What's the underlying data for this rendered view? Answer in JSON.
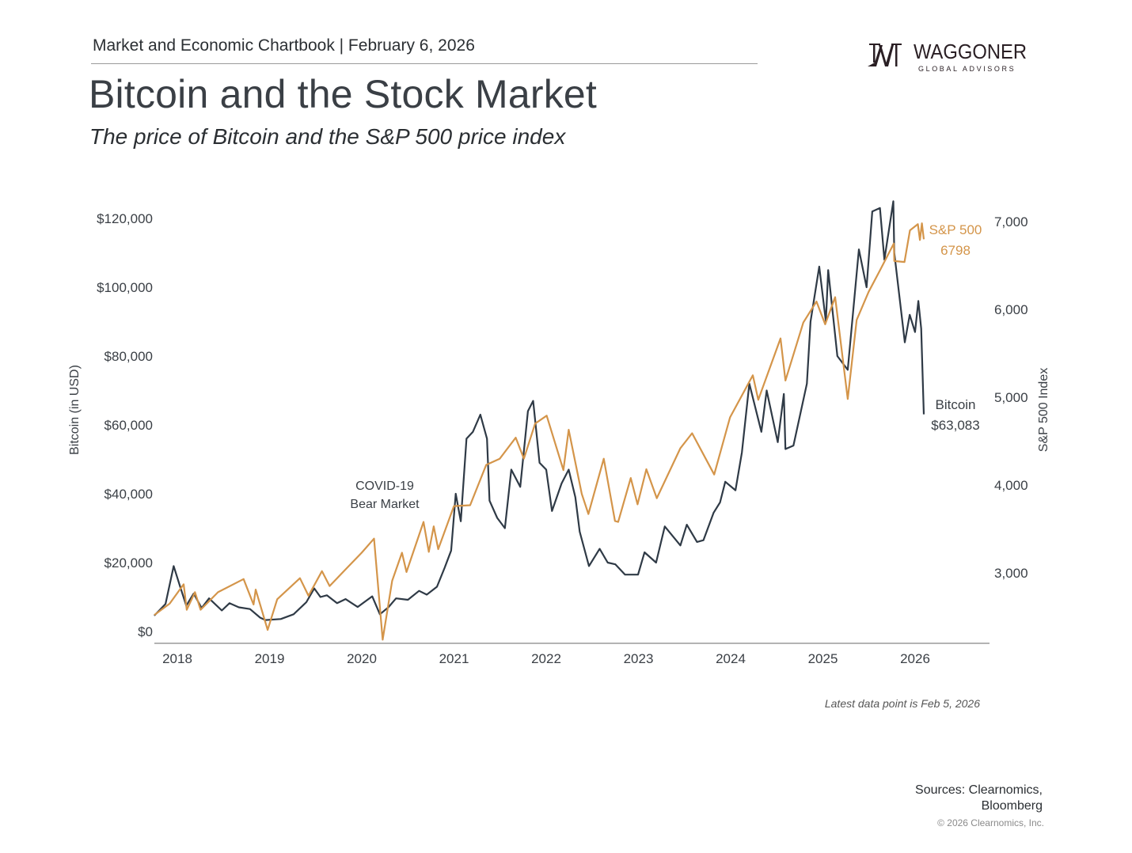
{
  "header": {
    "chartbook": "Market and Economic Chartbook | February 6, 2026",
    "title": "Bitcoin and the Stock Market",
    "subtitle": "The price of Bitcoin and the S&P 500 price index"
  },
  "logo": {
    "name": "WAGGONER",
    "tagline": "GLOBAL ADVISORS"
  },
  "footer": {
    "latest": "Latest data point is Feb 5, 2026",
    "sources_line1": "Sources: Clearnomics,",
    "sources_line2": "Bloomberg",
    "copyright": "© 2026 Clearnomics, Inc."
  },
  "chart_data": {
    "type": "line",
    "title": "Bitcoin and the Stock Market",
    "subtitle": "The price of Bitcoin and the S&P 500 price index",
    "ylabel_left": "Bitcoin (in USD)",
    "ylabel_right": "S&P 500 Index",
    "x_ticks": [
      "2018",
      "2019",
      "2020",
      "2021",
      "2022",
      "2023",
      "2024",
      "2025",
      "2026"
    ],
    "y_left_ticks": [
      "$0",
      "$20,000",
      "$40,000",
      "$60,000",
      "$80,000",
      "$100,000",
      "$120,000"
    ],
    "y_left_tick_values": [
      0,
      20000,
      40000,
      60000,
      80000,
      100000,
      120000
    ],
    "y_right_ticks": [
      "3,000",
      "4,000",
      "5,000",
      "6,000",
      "7,000"
    ],
    "y_right_tick_values": [
      3000,
      4000,
      5000,
      6000,
      7000
    ],
    "ylim_left": [
      -3500,
      125000
    ],
    "ylim_right": [
      2200,
      7200
    ],
    "xlim": [
      "2017-10-01",
      "2026-10-15"
    ],
    "grid": false,
    "legend": "none (direct labels at line ends)",
    "colors": {
      "bitcoin": "#2f3a46",
      "sp500": "#d4954a",
      "axis": "#9a9a9a"
    },
    "annotations": {
      "covid_line1": "COVID-19",
      "covid_line2": "Bear Market",
      "sp_label": "S&P 500",
      "sp_value": "6798",
      "btc_label": "Bitcoin",
      "btc_value": "$63,083"
    },
    "series": [
      {
        "name": "Bitcoin",
        "axis": "left",
        "points": [
          [
            "2017-10-01",
            4600
          ],
          [
            "2017-11-15",
            8000
          ],
          [
            "2017-12-17",
            19000
          ],
          [
            "2018-01-10",
            13500
          ],
          [
            "2018-02-06",
            7500
          ],
          [
            "2018-03-05",
            11000
          ],
          [
            "2018-04-06",
            6800
          ],
          [
            "2018-05-05",
            9600
          ],
          [
            "2018-06-25",
            6100
          ],
          [
            "2018-07-25",
            8200
          ],
          [
            "2018-09-01",
            7000
          ],
          [
            "2018-10-15",
            6500
          ],
          [
            "2018-11-25",
            4000
          ],
          [
            "2018-12-15",
            3300
          ],
          [
            "2019-02-15",
            3600
          ],
          [
            "2019-04-05",
            5000
          ],
          [
            "2019-05-25",
            8500
          ],
          [
            "2019-06-26",
            12500
          ],
          [
            "2019-07-20",
            10000
          ],
          [
            "2019-08-15",
            10500
          ],
          [
            "2019-09-25",
            8200
          ],
          [
            "2019-10-28",
            9400
          ],
          [
            "2019-12-15",
            7100
          ],
          [
            "2020-02-12",
            10200
          ],
          [
            "2020-03-12",
            5000
          ],
          [
            "2020-04-15",
            7000
          ],
          [
            "2020-05-15",
            9600
          ],
          [
            "2020-07-01",
            9200
          ],
          [
            "2020-08-15",
            11800
          ],
          [
            "2020-09-15",
            10700
          ],
          [
            "2020-10-25",
            13000
          ],
          [
            "2020-11-25",
            18500
          ],
          [
            "2020-12-20",
            23500
          ],
          [
            "2021-01-08",
            40000
          ],
          [
            "2021-01-28",
            32000
          ],
          [
            "2021-02-20",
            56000
          ],
          [
            "2021-03-15",
            58000
          ],
          [
            "2021-04-14",
            63000
          ],
          [
            "2021-05-10",
            56000
          ],
          [
            "2021-05-20",
            38000
          ],
          [
            "2021-06-20",
            33000
          ],
          [
            "2021-07-20",
            30000
          ],
          [
            "2021-08-15",
            47000
          ],
          [
            "2021-09-20",
            42000
          ],
          [
            "2021-10-20",
            64000
          ],
          [
            "2021-11-10",
            67000
          ],
          [
            "2021-12-05",
            49000
          ],
          [
            "2022-01-01",
            47000
          ],
          [
            "2022-01-24",
            35000
          ],
          [
            "2022-03-01",
            43000
          ],
          [
            "2022-03-29",
            47000
          ],
          [
            "2022-04-25",
            39000
          ],
          [
            "2022-05-12",
            29000
          ],
          [
            "2022-06-18",
            19000
          ],
          [
            "2022-07-30",
            24000
          ],
          [
            "2022-09-01",
            20000
          ],
          [
            "2022-10-01",
            19500
          ],
          [
            "2022-11-09",
            16500
          ],
          [
            "2022-12-30",
            16500
          ],
          [
            "2023-01-25",
            23000
          ],
          [
            "2023-03-10",
            20000
          ],
          [
            "2023-04-14",
            30500
          ],
          [
            "2023-06-15",
            25000
          ],
          [
            "2023-07-10",
            31000
          ],
          [
            "2023-08-20",
            26000
          ],
          [
            "2023-09-15",
            26500
          ],
          [
            "2023-10-25",
            34500
          ],
          [
            "2023-11-20",
            37500
          ],
          [
            "2023-12-10",
            43500
          ],
          [
            "2024-01-20",
            41000
          ],
          [
            "2024-02-15",
            52000
          ],
          [
            "2024-03-14",
            72000
          ],
          [
            "2024-05-01",
            58000
          ],
          [
            "2024-05-22",
            70000
          ],
          [
            "2024-07-05",
            55000
          ],
          [
            "2024-07-29",
            69000
          ],
          [
            "2024-08-05",
            53000
          ],
          [
            "2024-09-06",
            54000
          ],
          [
            "2024-10-29",
            72000
          ],
          [
            "2024-11-13",
            90000
          ],
          [
            "2024-12-17",
            106000
          ],
          [
            "2025-01-13",
            90000
          ],
          [
            "2025-01-22",
            105000
          ],
          [
            "2025-02-28",
            80000
          ],
          [
            "2025-04-08",
            76000
          ],
          [
            "2025-05-22",
            111000
          ],
          [
            "2025-06-22",
            100000
          ],
          [
            "2025-07-14",
            122000
          ],
          [
            "2025-08-14",
            123000
          ],
          [
            "2025-09-01",
            108000
          ],
          [
            "2025-10-06",
            125000
          ],
          [
            "2025-10-10",
            110000
          ],
          [
            "2025-11-21",
            84000
          ],
          [
            "2025-12-10",
            92000
          ],
          [
            "2025-12-31",
            87000
          ],
          [
            "2026-01-14",
            96000
          ],
          [
            "2026-01-25",
            88000
          ],
          [
            "2026-02-05",
            63083
          ]
        ]
      },
      {
        "name": "S&P 500",
        "axis": "right",
        "points": [
          [
            "2017-10-01",
            2520
          ],
          [
            "2017-12-01",
            2650
          ],
          [
            "2018-01-26",
            2870
          ],
          [
            "2018-02-08",
            2580
          ],
          [
            "2018-03-10",
            2780
          ],
          [
            "2018-04-02",
            2580
          ],
          [
            "2018-06-10",
            2780
          ],
          [
            "2018-09-20",
            2930
          ],
          [
            "2018-10-29",
            2640
          ],
          [
            "2018-11-07",
            2810
          ],
          [
            "2018-12-24",
            2350
          ],
          [
            "2019-02-01",
            2700
          ],
          [
            "2019-04-30",
            2940
          ],
          [
            "2019-06-03",
            2740
          ],
          [
            "2019-07-26",
            3020
          ],
          [
            "2019-08-26",
            2850
          ],
          [
            "2019-10-28",
            3040
          ],
          [
            "2019-12-31",
            3230
          ],
          [
            "2020-02-19",
            3390
          ],
          [
            "2020-03-23",
            2240
          ],
          [
            "2020-04-30",
            2910
          ],
          [
            "2020-06-08",
            3230
          ],
          [
            "2020-06-26",
            3010
          ],
          [
            "2020-09-02",
            3580
          ],
          [
            "2020-09-23",
            3240
          ],
          [
            "2020-10-12",
            3530
          ],
          [
            "2020-10-30",
            3270
          ],
          [
            "2020-12-31",
            3760
          ],
          [
            "2021-03-04",
            3770
          ],
          [
            "2021-05-07",
            4230
          ],
          [
            "2021-06-30",
            4300
          ],
          [
            "2021-09-02",
            4540
          ],
          [
            "2021-10-04",
            4300
          ],
          [
            "2021-11-18",
            4700
          ],
          [
            "2022-01-03",
            4790
          ],
          [
            "2022-03-08",
            4170
          ],
          [
            "2022-03-29",
            4630
          ],
          [
            "2022-05-20",
            3900
          ],
          [
            "2022-06-16",
            3670
          ],
          [
            "2022-08-16",
            4300
          ],
          [
            "2022-09-30",
            3590
          ],
          [
            "2022-10-12",
            3580
          ],
          [
            "2022-12-01",
            4080
          ],
          [
            "2022-12-28",
            3780
          ],
          [
            "2023-02-02",
            4180
          ],
          [
            "2023-03-13",
            3850
          ],
          [
            "2023-06-15",
            4420
          ],
          [
            "2023-07-31",
            4590
          ],
          [
            "2023-10-27",
            4120
          ],
          [
            "2023-12-29",
            4770
          ],
          [
            "2024-03-28",
            5250
          ],
          [
            "2024-04-19",
            4970
          ],
          [
            "2024-07-16",
            5670
          ],
          [
            "2024-08-05",
            5190
          ],
          [
            "2024-10-15",
            5850
          ],
          [
            "2024-12-06",
            6090
          ],
          [
            "2025-01-10",
            5830
          ],
          [
            "2025-02-19",
            6140
          ],
          [
            "2025-04-08",
            4980
          ],
          [
            "2025-05-13",
            5880
          ],
          [
            "2025-06-30",
            6200
          ],
          [
            "2025-08-15",
            6450
          ],
          [
            "2025-10-08",
            6750
          ],
          [
            "2025-10-10",
            6550
          ],
          [
            "2025-11-20",
            6540
          ],
          [
            "2025-12-11",
            6900
          ],
          [
            "2026-01-12",
            6970
          ],
          [
            "2026-01-20",
            6790
          ],
          [
            "2026-01-28",
            6980
          ],
          [
            "2026-02-05",
            6798
          ]
        ]
      }
    ]
  }
}
